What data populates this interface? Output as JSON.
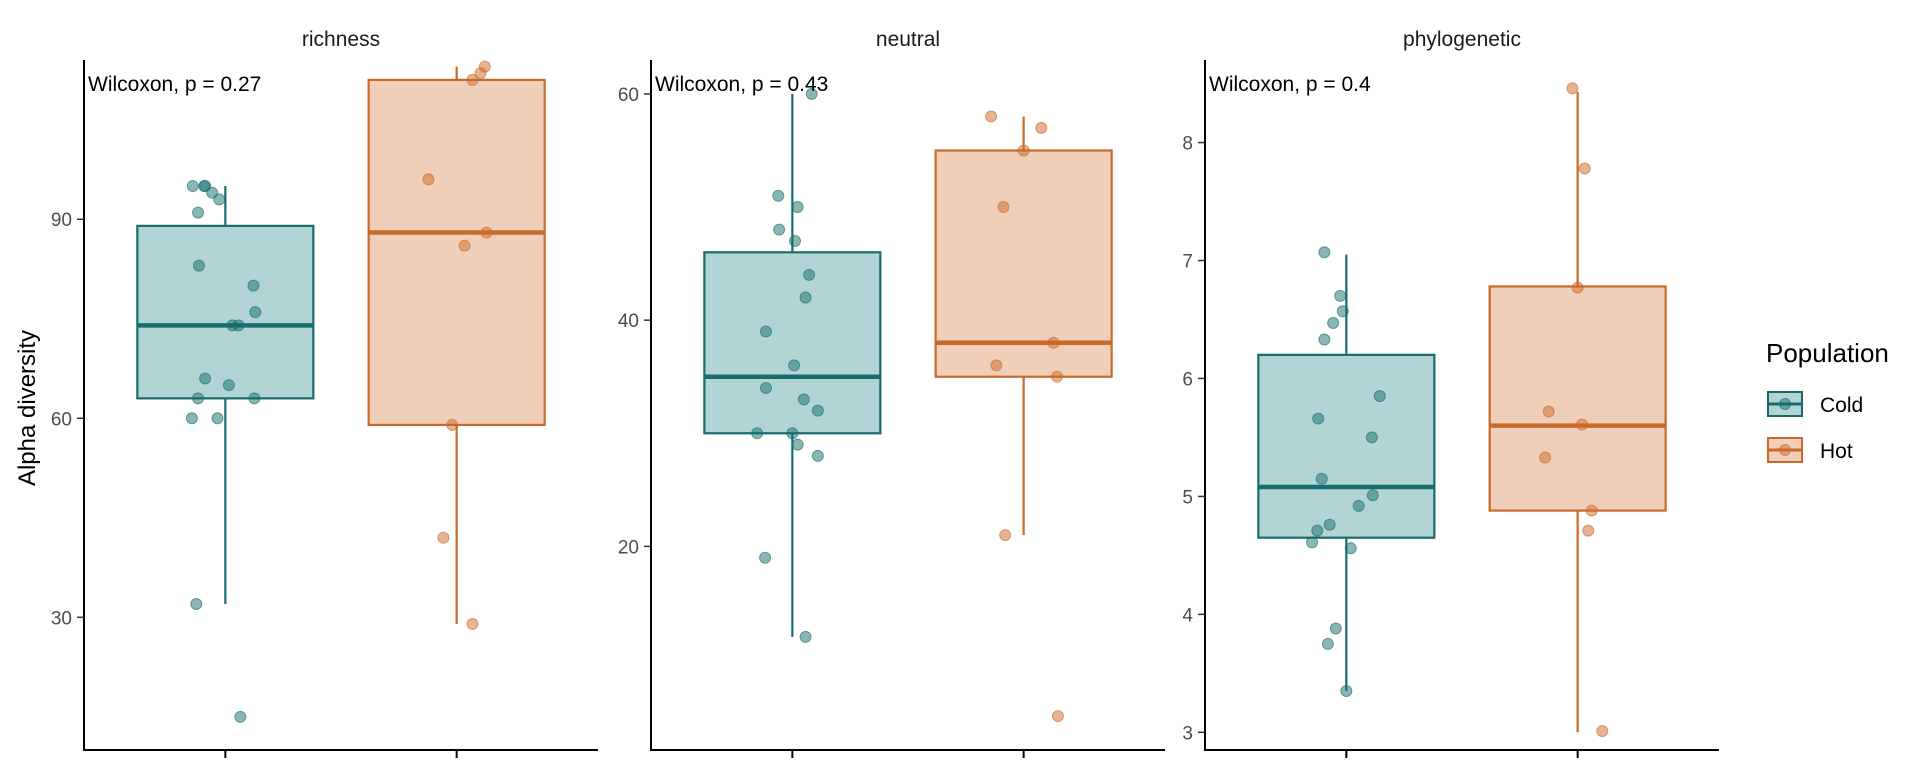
{
  "chart_data": {
    "type": "box",
    "ylabel": "Alpha diversity",
    "legend": {
      "title": "Population",
      "position": "right"
    },
    "groups": [
      {
        "name": "Cold",
        "color": "#176d6d",
        "fill": "#b3d4d4"
      },
      {
        "name": "Hot",
        "color": "#c96a29",
        "fill": "#f0cfba"
      }
    ],
    "grid": false,
    "panels": [
      {
        "title": "richness",
        "stat_label": "Wilcoxon, p = 0.27",
        "ylim": [
          10,
          114
        ],
        "yticks": [
          30,
          60,
          90
        ],
        "boxes": [
          {
            "group": "Cold",
            "whisker_low": 32,
            "q1": 63,
            "median": 74,
            "q3": 89,
            "whisker_high": 95,
            "points": [
              [
                -0.37,
                95
              ],
              [
                -0.24,
                95
              ],
              [
                -0.23,
                95
              ],
              [
                -0.15,
                94
              ],
              [
                -0.07,
                93
              ],
              [
                -0.31,
                91
              ],
              [
                -0.3,
                83
              ],
              [
                0.32,
                80
              ],
              [
                0.34,
                76
              ],
              [
                0.08,
                74
              ],
              [
                0.15,
                74
              ],
              [
                -0.23,
                66
              ],
              [
                0.04,
                65
              ],
              [
                -0.31,
                63
              ],
              [
                0.33,
                63
              ],
              [
                -0.38,
                60
              ],
              [
                -0.09,
                60
              ],
              [
                -0.33,
                32
              ],
              [
                0.17,
                15
              ]
            ]
          },
          {
            "group": "Hot",
            "whisker_low": 29,
            "q1": 59,
            "median": 88,
            "q3": 111,
            "whisker_high": 113,
            "points": [
              [
                -0.32,
                96
              ],
              [
                0.09,
                86
              ],
              [
                0.34,
                88
              ],
              [
                0.18,
                111
              ],
              [
                0.27,
                112
              ],
              [
                0.32,
                113
              ],
              [
                -0.05,
                59
              ],
              [
                -0.15,
                42
              ],
              [
                0.18,
                29
              ]
            ]
          }
        ]
      },
      {
        "title": "neutral",
        "stat_label": "Wilcoxon, p = 0.43",
        "ylim": [
          2,
          63
        ],
        "yticks": [
          20,
          40,
          60
        ],
        "boxes": [
          {
            "group": "Cold",
            "whisker_low": 12,
            "q1": 30,
            "median": 35,
            "q3": 46,
            "whisker_high": 60,
            "points": [
              [
                0.22,
                60
              ],
              [
                -0.16,
                51
              ],
              [
                0.06,
                50
              ],
              [
                -0.15,
                48
              ],
              [
                0.03,
                47
              ],
              [
                0.19,
                44
              ],
              [
                0.15,
                42
              ],
              [
                -0.3,
                39
              ],
              [
                0.02,
                36
              ],
              [
                0.13,
                33
              ],
              [
                -0.3,
                34
              ],
              [
                0.29,
                32
              ],
              [
                -0.4,
                30
              ],
              [
                0.0,
                30
              ],
              [
                0.06,
                29
              ],
              [
                0.29,
                28
              ],
              [
                -0.31,
                19
              ],
              [
                0.15,
                12
              ]
            ]
          },
          {
            "group": "Hot",
            "whisker_low": 21,
            "q1": 35,
            "median": 38,
            "q3": 55,
            "whisker_high": 58,
            "points": [
              [
                -0.37,
                58
              ],
              [
                0.2,
                57
              ],
              [
                0.0,
                55
              ],
              [
                -0.23,
                50
              ],
              [
                -0.31,
                36
              ],
              [
                0.34,
                38
              ],
              [
                0.38,
                35
              ],
              [
                -0.21,
                21
              ],
              [
                0.39,
                5
              ]
            ]
          }
        ]
      },
      {
        "title": "phylogenetic",
        "stat_label": "Wilcoxon, p = 0.4",
        "ylim": [
          2.85,
          8.7
        ],
        "yticks": [
          3,
          4,
          5,
          6,
          7,
          8
        ],
        "boxes": [
          {
            "group": "Cold",
            "whisker_low": 3.35,
            "q1": 4.65,
            "median": 5.08,
            "q3": 6.2,
            "whisker_high": 7.05,
            "points": [
              [
                -0.25,
                7.07
              ],
              [
                -0.07,
                6.7
              ],
              [
                -0.15,
                6.47
              ],
              [
                -0.04,
                6.57
              ],
              [
                -0.25,
                6.33
              ],
              [
                0.38,
                5.85
              ],
              [
                -0.32,
                5.66
              ],
              [
                0.29,
                5.5
              ],
              [
                -0.28,
                5.15
              ],
              [
                0.3,
                5.01
              ],
              [
                0.14,
                4.92
              ],
              [
                -0.19,
                4.76
              ],
              [
                -0.33,
                4.71
              ],
              [
                -0.39,
                4.61
              ],
              [
                0.05,
                4.56
              ],
              [
                -0.12,
                3.88
              ],
              [
                -0.21,
                3.75
              ],
              [
                0.0,
                3.35
              ]
            ]
          },
          {
            "group": "Hot",
            "whisker_low": 3.0,
            "q1": 4.88,
            "median": 5.6,
            "q3": 6.78,
            "whisker_high": 8.43,
            "points": [
              [
                -0.06,
                8.46
              ],
              [
                0.08,
                7.78
              ],
              [
                0.0,
                6.77
              ],
              [
                -0.33,
                5.72
              ],
              [
                0.05,
                5.61
              ],
              [
                -0.37,
                5.33
              ],
              [
                0.16,
                4.88
              ],
              [
                0.12,
                4.71
              ],
              [
                0.28,
                3.01
              ]
            ]
          }
        ]
      }
    ]
  }
}
